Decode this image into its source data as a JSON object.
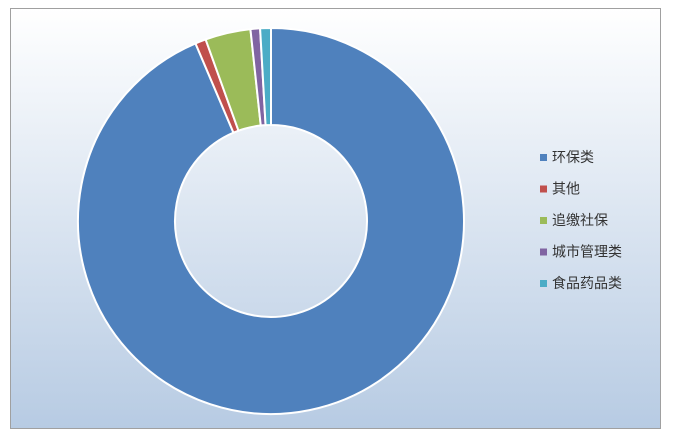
{
  "chart_data": {
    "type": "donut",
    "categories": [
      "环保类",
      "其他",
      "追缴社保",
      "城市管理类",
      "食品药品类"
    ],
    "values": [
      93.6,
      0.9,
      3.8,
      0.8,
      0.9
    ],
    "colors": [
      "#4f81bd",
      "#c0504d",
      "#9bbb59",
      "#8064a2",
      "#4bacc6"
    ],
    "legend": "right"
  }
}
